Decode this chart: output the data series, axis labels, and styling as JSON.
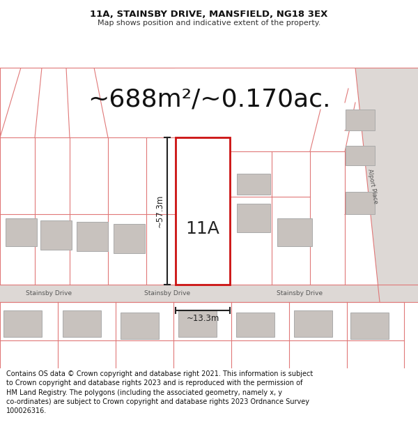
{
  "title_line1": "11A, STAINSBY DRIVE, MANSFIELD, NG18 3EX",
  "title_line2": "Map shows position and indicative extent of the property.",
  "area_text": "~688m²/~0.170ac.",
  "label_11a": "11A",
  "dim_vertical": "~57.3m",
  "dim_horizontal": "~13.3m",
  "road_label": "Stainsby Drive",
  "alport_label": "Alport Place",
  "footer_text": "Contains OS data © Crown copyright and database right 2021. This information is subject\nto Crown copyright and database rights 2023 and is reproduced with the permission of\nHM Land Registry. The polygons (including the associated geometry, namely x, y\nco-ordinates) are subject to Crown copyright and database rights 2023 Ordnance Survey\n100026316.",
  "bg_map": "#f2eeec",
  "bg_page": "#ffffff",
  "plot_fill": "#ffffff",
  "plot_edge": "#cc1111",
  "road_fill": "#ddd8d5",
  "building_fill": "#c8c2be",
  "red_line": "#e07878",
  "dark_line": "#222222",
  "title_fs": 9.5,
  "subtitle_fs": 8,
  "area_fs": 26,
  "label_fs": 18,
  "road_label_fs": 6.5,
  "dim_fs": 8.5,
  "footer_fs": 7,
  "alport_fs": 6
}
